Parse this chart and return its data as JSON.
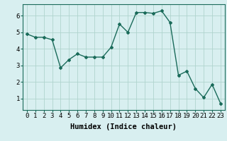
{
  "x": [
    0,
    1,
    2,
    3,
    4,
    5,
    6,
    7,
    8,
    9,
    10,
    11,
    12,
    13,
    14,
    15,
    16,
    17,
    18,
    19,
    20,
    21,
    22,
    23
  ],
  "y": [
    4.9,
    4.7,
    4.7,
    4.55,
    2.85,
    3.35,
    3.7,
    3.5,
    3.5,
    3.5,
    4.1,
    5.5,
    5.0,
    6.2,
    6.2,
    6.15,
    6.3,
    5.6,
    2.4,
    2.65,
    1.6,
    1.05,
    1.85,
    0.7
  ],
  "line_color": "#1a6b5a",
  "marker": "D",
  "marker_size": 2.0,
  "linewidth": 1.0,
  "bg_color": "#d8eff0",
  "grid_color": "#b0d4ce",
  "xlabel": "Humidex (Indice chaleur)",
  "xlabel_fontsize": 7.5,
  "xtick_labels": [
    "0",
    "1",
    "2",
    "3",
    "4",
    "5",
    "6",
    "7",
    "8",
    "9",
    "10",
    "11",
    "12",
    "13",
    "14",
    "15",
    "16",
    "17",
    "18",
    "19",
    "20",
    "21",
    "22",
    "23"
  ],
  "ytick_labels": [
    "1",
    "2",
    "3",
    "4",
    "5",
    "6"
  ],
  "yticks": [
    1,
    2,
    3,
    4,
    5,
    6
  ],
  "ylim": [
    0.3,
    6.7
  ],
  "xlim": [
    -0.5,
    23.5
  ],
  "tick_fontsize": 6.5
}
